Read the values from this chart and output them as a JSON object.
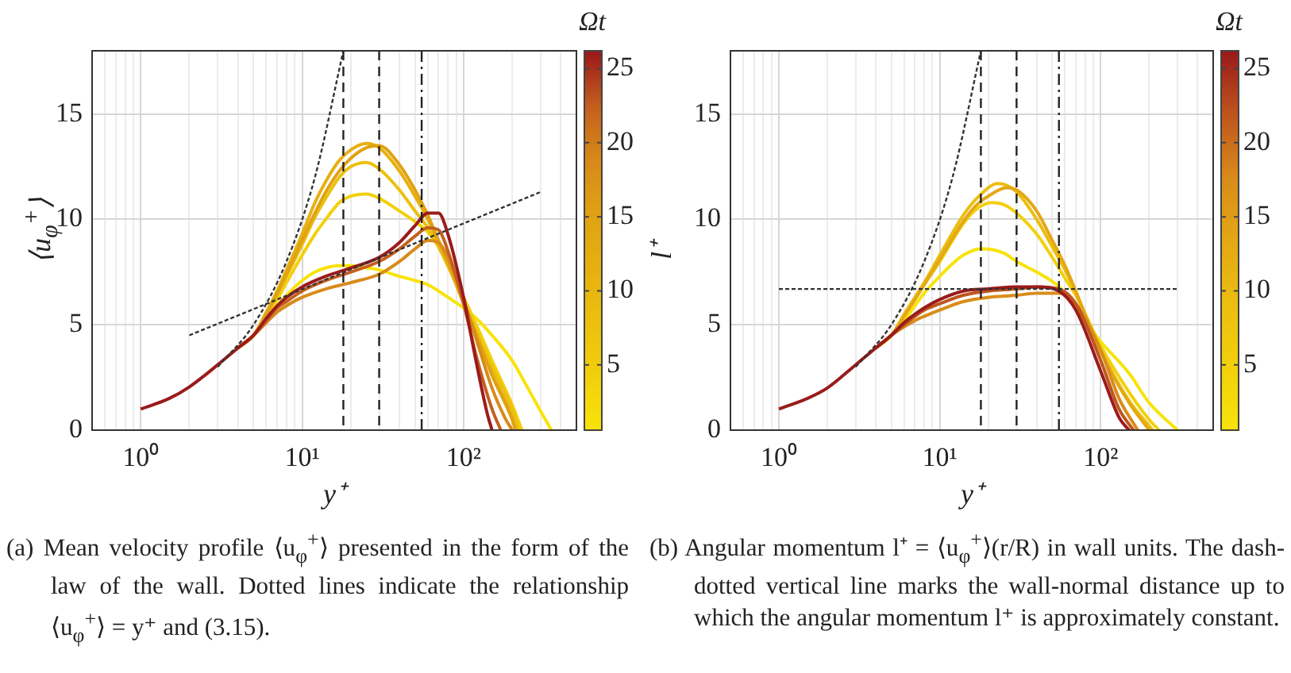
{
  "chart_data": [
    {
      "type": "line",
      "xlabel": "y⁺",
      "ylabel": "⟨u$_{φ}$$^{+}$⟩",
      "clabel": "Ωt",
      "log": "x",
      "grid": true,
      "legend": false,
      "marker": "none",
      "xlim": [
        0.5,
        500
      ],
      "ylim": [
        0,
        18
      ],
      "yticks": [
        0,
        5,
        10,
        15
      ],
      "xticks": [
        {
          "value": 0.6,
          "label": null
        },
        {
          "value": 0.7,
          "label": null
        },
        {
          "value": 0.8,
          "label": null
        },
        {
          "value": 0.9,
          "label": null
        },
        {
          "value": 1,
          "label": "10⁰"
        },
        {
          "value": 2,
          "label": null
        },
        {
          "value": 3,
          "label": null
        },
        {
          "value": 4,
          "label": null
        },
        {
          "value": 5,
          "label": null
        },
        {
          "value": 6,
          "label": null
        },
        {
          "value": 7,
          "label": null
        },
        {
          "value": 8,
          "label": null
        },
        {
          "value": 9,
          "label": null
        },
        {
          "value": 10,
          "label": "10¹"
        },
        {
          "value": 20,
          "label": null
        },
        {
          "value": 30,
          "label": null
        },
        {
          "value": 40,
          "label": null
        },
        {
          "value": 50,
          "label": null
        },
        {
          "value": 60,
          "label": null
        },
        {
          "value": 70,
          "label": null
        },
        {
          "value": 80,
          "label": null
        },
        {
          "value": 90,
          "label": null
        },
        {
          "value": 100,
          "label": "10²"
        },
        {
          "value": 200,
          "label": null
        },
        {
          "value": 300,
          "label": null
        },
        {
          "value": 400,
          "label": null
        },
        {
          "value": 500,
          "label": null
        }
      ],
      "clim": [
        0.6,
        26.2
      ],
      "cticks": [
        5,
        10,
        15,
        20,
        25
      ],
      "series": [
        {
          "color": "#f8e30a",
          "x": [
            4,
            5,
            6,
            7,
            8,
            10,
            12,
            14,
            17,
            20,
            25,
            30,
            40,
            50,
            60,
            70,
            80,
            100,
            120,
            150,
            200,
            250,
            300,
            350
          ],
          "values": [
            3.9,
            4.5,
            5.2,
            5.9,
            6.4,
            7.1,
            7.5,
            7.7,
            7.8,
            7.8,
            7.7,
            7.6,
            7.3,
            7.1,
            6.9,
            6.6,
            6.3,
            5.8,
            5.3,
            4.5,
            3.3,
            2.0,
            0.9,
            0
          ]
        },
        {
          "color": "#f2d00c",
          "x": [
            4,
            5,
            6,
            7,
            8,
            10,
            12,
            14,
            17,
            20,
            25,
            30,
            40,
            50,
            60,
            70,
            80,
            100,
            120,
            150,
            200,
            230
          ],
          "values": [
            3.9,
            4.5,
            5.4,
            6.2,
            7.0,
            8.3,
            9.3,
            10.0,
            10.8,
            11.1,
            11.2,
            11.0,
            10.4,
            9.9,
            9.4,
            8.7,
            7.8,
            6.3,
            5.0,
            3.3,
            1.2,
            0
          ]
        },
        {
          "color": "#ecc00e",
          "x": [
            4,
            5,
            6,
            7,
            8,
            10,
            12,
            14,
            17,
            20,
            25,
            30,
            40,
            50,
            60,
            70,
            80,
            100,
            120,
            150,
            200,
            220
          ],
          "values": [
            3.9,
            4.5,
            5.5,
            6.4,
            7.3,
            8.8,
            10.1,
            11.0,
            12.0,
            12.5,
            12.7,
            12.4,
            11.4,
            10.4,
            9.6,
            8.7,
            7.8,
            6.1,
            4.7,
            3.0,
            1.0,
            0
          ]
        },
        {
          "color": "#e6b010",
          "x": [
            4,
            5,
            6,
            7,
            8,
            10,
            12,
            14,
            17,
            20,
            25,
            30,
            40,
            50,
            60,
            70,
            80,
            100,
            120,
            150,
            200,
            210
          ],
          "values": [
            3.9,
            4.5,
            5.6,
            6.6,
            7.6,
            9.3,
            10.8,
            11.8,
            12.8,
            13.3,
            13.6,
            13.4,
            12.3,
            11.1,
            10.0,
            8.9,
            7.9,
            6.0,
            4.5,
            2.7,
            0.6,
            0
          ]
        },
        {
          "color": "#e0a214",
          "x": [
            4,
            5,
            6,
            7,
            8,
            10,
            12,
            14,
            17,
            20,
            25,
            30,
            40,
            50,
            60,
            70,
            80,
            100,
            120,
            150,
            200,
            210
          ],
          "values": [
            3.9,
            4.5,
            5.5,
            6.5,
            7.4,
            9.0,
            10.3,
            11.3,
            12.3,
            12.9,
            13.4,
            13.5,
            12.6,
            11.4,
            10.2,
            9.0,
            8.0,
            6.1,
            4.5,
            2.6,
            0.5,
            0
          ]
        },
        {
          "color": "#d88a1a",
          "x": [
            4,
            5,
            6,
            7,
            8,
            10,
            14,
            20,
            30,
            40,
            50,
            60,
            70,
            80,
            100,
            120,
            150,
            180,
            200
          ],
          "values": [
            3.9,
            4.5,
            5.1,
            5.6,
            5.9,
            6.3,
            6.7,
            7.0,
            7.4,
            8.0,
            8.6,
            9.0,
            8.9,
            8.2,
            6.2,
            4.3,
            2.0,
            0.6,
            0
          ]
        },
        {
          "color": "#c4601e",
          "x": [
            4,
            5,
            6,
            7,
            8,
            10,
            14,
            20,
            30,
            40,
            50,
            60,
            70,
            80,
            100,
            120,
            150,
            170
          ],
          "values": [
            3.9,
            4.5,
            5.2,
            5.8,
            6.1,
            6.6,
            7.1,
            7.5,
            8.0,
            8.6,
            9.2,
            9.6,
            9.5,
            8.5,
            6.0,
            3.5,
            1.0,
            0
          ]
        },
        {
          "color": "#9b1b1b",
          "x": [
            1,
            1.5,
            2,
            3,
            4,
            5,
            6,
            7,
            8,
            10,
            14,
            20,
            30,
            40,
            50,
            60,
            70,
            80,
            100,
            120,
            140,
            150
          ],
          "values": [
            1,
            1.5,
            2.05,
            3.1,
            3.9,
            4.5,
            5.3,
            5.9,
            6.3,
            6.8,
            7.3,
            7.7,
            8.2,
            8.9,
            9.7,
            10.3,
            10.3,
            9.3,
            6.3,
            3.2,
            0.8,
            0
          ]
        },
        {
          "color": "#333333",
          "line_style": "dotted",
          "x": [
            3,
            5,
            8,
            12,
            18
          ],
          "values": [
            3,
            5,
            8,
            12,
            18
          ]
        },
        {
          "color": "#333333",
          "line_style": "dotted",
          "x": [
            2,
            300
          ],
          "values": [
            4.5,
            11.3
          ]
        }
      ],
      "ref_lines": [
        {
          "axis": "x",
          "value": 18,
          "line_style": "dashed",
          "color": "#222222"
        },
        {
          "axis": "x",
          "value": 30,
          "line_style": "dashed",
          "color": "#222222"
        },
        {
          "axis": "x",
          "value": 55,
          "line_style": "dashdot",
          "color": "#222222"
        }
      ],
      "annotations": [
        "(a) Mean velocity profile ⟨u$_{φ}$$^{+}$⟩ presented in the form of the law of the wall. Dotted lines indicate the relationship ⟨u$_{φ}$$^{+}$⟩ = y⁺ and (3.15)."
      ]
    },
    {
      "type": "line",
      "xlabel": "y⁺",
      "ylabel": "l⁺",
      "clabel": "Ωt",
      "log": "x",
      "grid": true,
      "legend": false,
      "marker": "none",
      "xlim": [
        0.5,
        500
      ],
      "ylim": [
        0,
        18
      ],
      "yticks": [
        0,
        5,
        10,
        15
      ],
      "xticks": [
        {
          "value": 0.6,
          "label": null
        },
        {
          "value": 0.7,
          "label": null
        },
        {
          "value": 0.8,
          "label": null
        },
        {
          "value": 0.9,
          "label": null
        },
        {
          "value": 1,
          "label": "10⁰"
        },
        {
          "value": 2,
          "label": null
        },
        {
          "value": 3,
          "label": null
        },
        {
          "value": 4,
          "label": null
        },
        {
          "value": 5,
          "label": null
        },
        {
          "value": 6,
          "label": null
        },
        {
          "value": 7,
          "label": null
        },
        {
          "value": 8,
          "label": null
        },
        {
          "value": 9,
          "label": null
        },
        {
          "value": 10,
          "label": "10¹"
        },
        {
          "value": 20,
          "label": null
        },
        {
          "value": 30,
          "label": null
        },
        {
          "value": 40,
          "label": null
        },
        {
          "value": 50,
          "label": null
        },
        {
          "value": 60,
          "label": null
        },
        {
          "value": 70,
          "label": null
        },
        {
          "value": 80,
          "label": null
        },
        {
          "value": 90,
          "label": null
        },
        {
          "value": 100,
          "label": "10²"
        },
        {
          "value": 200,
          "label": null
        },
        {
          "value": 300,
          "label": null
        },
        {
          "value": 400,
          "label": null
        },
        {
          "value": 500,
          "label": null
        }
      ],
      "clim": [
        0.6,
        26.2
      ],
      "cticks": [
        5,
        10,
        15,
        20,
        25
      ],
      "series": [
        {
          "color": "#f8e30a",
          "x": [
            4,
            5,
            6,
            7,
            8,
            10,
            12,
            14,
            18,
            25,
            30,
            40,
            55,
            70,
            100,
            150,
            200,
            300
          ],
          "values": [
            3.9,
            4.5,
            5.2,
            5.9,
            6.5,
            7.3,
            7.9,
            8.3,
            8.6,
            8.4,
            8.0,
            7.5,
            6.8,
            5.8,
            4.2,
            2.7,
            1.3,
            0
          ]
        },
        {
          "color": "#f2d00c",
          "x": [
            4,
            5,
            6,
            7,
            8,
            10,
            14,
            17,
            21,
            25,
            30,
            40,
            50,
            60,
            70,
            100,
            150,
            200,
            230
          ],
          "values": [
            3.9,
            4.5,
            5.4,
            6.2,
            6.9,
            8.0,
            9.8,
            10.5,
            10.8,
            10.7,
            10.3,
            9.3,
            8.2,
            7.2,
            6.4,
            4.0,
            1.8,
            0.5,
            0
          ]
        },
        {
          "color": "#ecbe10",
          "x": [
            4,
            5,
            6,
            7,
            8,
            10,
            14,
            17,
            23,
            30,
            40,
            50,
            60,
            70,
            100,
            150,
            200,
            210
          ],
          "values": [
            3.9,
            4.5,
            5.5,
            6.3,
            7.0,
            8.3,
            10.2,
            11.0,
            11.7,
            11.3,
            10.0,
            8.7,
            7.6,
            6.5,
            3.8,
            1.4,
            0.2,
            0
          ]
        },
        {
          "color": "#e3a814",
          "x": [
            4,
            5,
            6,
            7,
            8,
            10,
            14,
            17,
            20,
            26,
            30,
            40,
            50,
            60,
            70,
            100,
            150,
            200
          ],
          "values": [
            3.9,
            4.5,
            5.4,
            6.2,
            6.9,
            8.1,
            9.9,
            10.7,
            11.1,
            11.5,
            11.4,
            10.4,
            9.0,
            7.8,
            6.6,
            3.7,
            1.3,
            0
          ]
        },
        {
          "color": "#d98c1a",
          "x": [
            4,
            5,
            6,
            7,
            8,
            10,
            14,
            20,
            30,
            40,
            55,
            70,
            100,
            130,
            170
          ],
          "values": [
            3.9,
            4.5,
            4.9,
            5.2,
            5.4,
            5.7,
            6.1,
            6.3,
            6.4,
            6.5,
            6.5,
            6.0,
            3.8,
            1.5,
            0
          ]
        },
        {
          "color": "#bf561e",
          "x": [
            4,
            5,
            6,
            7,
            8,
            10,
            14,
            20,
            30,
            40,
            55,
            70,
            100,
            130,
            160
          ],
          "values": [
            3.9,
            4.5,
            5.0,
            5.4,
            5.7,
            6.0,
            6.4,
            6.6,
            6.7,
            6.8,
            6.7,
            6.0,
            3.3,
            1.0,
            0
          ]
        },
        {
          "color": "#9b1b1b",
          "x": [
            1,
            1.5,
            2,
            3,
            4,
            5,
            6,
            7,
            8,
            10,
            14,
            20,
            30,
            40,
            55,
            70,
            100,
            130,
            150
          ],
          "values": [
            1,
            1.5,
            2.0,
            3.1,
            3.9,
            4.5,
            5.1,
            5.5,
            5.8,
            6.2,
            6.6,
            6.7,
            6.8,
            6.8,
            6.6,
            5.7,
            2.8,
            0.6,
            0
          ]
        },
        {
          "color": "#333333",
          "line_style": "dotted",
          "x": [
            3,
            5,
            8,
            12,
            18
          ],
          "values": [
            3,
            5,
            8,
            12,
            18
          ]
        },
        {
          "color": "#333333",
          "line_style": "dotted",
          "x": [
            1,
            300
          ],
          "values": [
            6.7,
            6.7
          ]
        }
      ],
      "ref_lines": [
        {
          "axis": "x",
          "value": 18,
          "line_style": "dashed",
          "color": "#222222"
        },
        {
          "axis": "x",
          "value": 30,
          "line_style": "dashed",
          "color": "#222222"
        },
        {
          "axis": "x",
          "value": 55,
          "line_style": "dashdot",
          "color": "#222222"
        }
      ],
      "annotations": [
        "(b) Angular momentum l⁺ = ⟨u$_{φ}$$^{+}$⟩(r/R) in wall units. The dash-dotted vertical line marks the wall-normal distance up to which the angular momentum l⁺ is approximately constant."
      ]
    }
  ]
}
